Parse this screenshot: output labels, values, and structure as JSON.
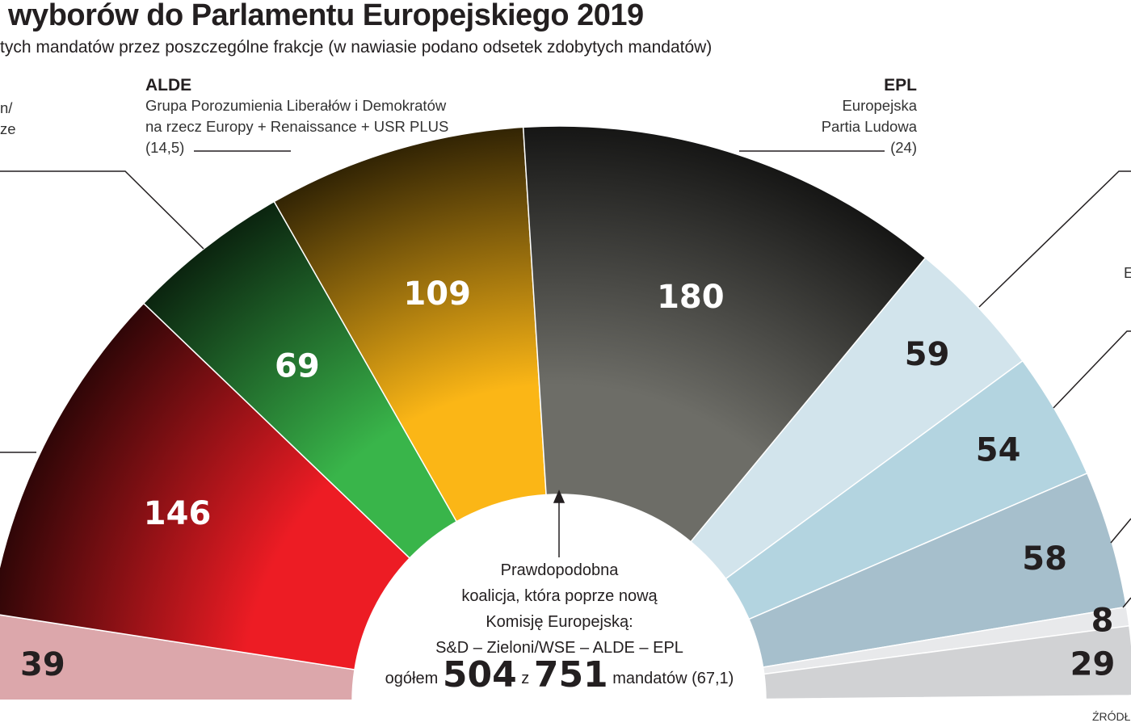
{
  "title": "wyborów do Parlamentu Europejskiego 2019",
  "subtitle": "tych mandatów przez poszczególne frakcje (w nawiasie podano odsetek zdobytych mandatów)",
  "left_partial": [
    "n/",
    "ze"
  ],
  "right_partial": "E",
  "source_partial": "ŹRÓDŁ",
  "alde": {
    "name": "ALDE",
    "line1": "Grupa Porozumienia Liberałów i Demokratów",
    "line2": "na rzecz Europy + Renaissance + USR PLUS",
    "pct": "(14,5)"
  },
  "epl": {
    "name": "EPL",
    "line1": "Europejska",
    "line2": "Partia Ludowa",
    "pct": "(24)"
  },
  "center": {
    "line1": "Prawdopodobna",
    "line2": "koalicja, która poprze nową",
    "line3": "Komisję Europejską:",
    "line4": "S&D – Zieloni/WSE – ALDE  – EPL",
    "pre": "ogółem",
    "seats": "504",
    "z": "z",
    "total": "751",
    "post": "mandatów (67,1)"
  },
  "chart_data": {
    "type": "pie",
    "shape": "semicircle-parliament",
    "total": 751,
    "values": [
      39,
      146,
      69,
      109,
      180,
      59,
      54,
      58,
      8,
      29
    ],
    "labels": [
      "39",
      "146",
      "69",
      "109",
      "180",
      "59",
      "54",
      "58",
      "8",
      "29"
    ],
    "colors": [
      "#dca7ab",
      "#ed1c24",
      "#39b54a",
      "#fbb616",
      "#6d6d67",
      "#d2e4ec",
      "#b3d4e0",
      "#a6bfcc",
      "#e8e9eb",
      "#d1d2d4"
    ],
    "label_colors": [
      "#231f20",
      "#ffffff",
      "#ffffff",
      "#ffffff",
      "#ffffff",
      "#231f20",
      "#231f20",
      "#231f20",
      "#231f20",
      "#231f20"
    ]
  }
}
